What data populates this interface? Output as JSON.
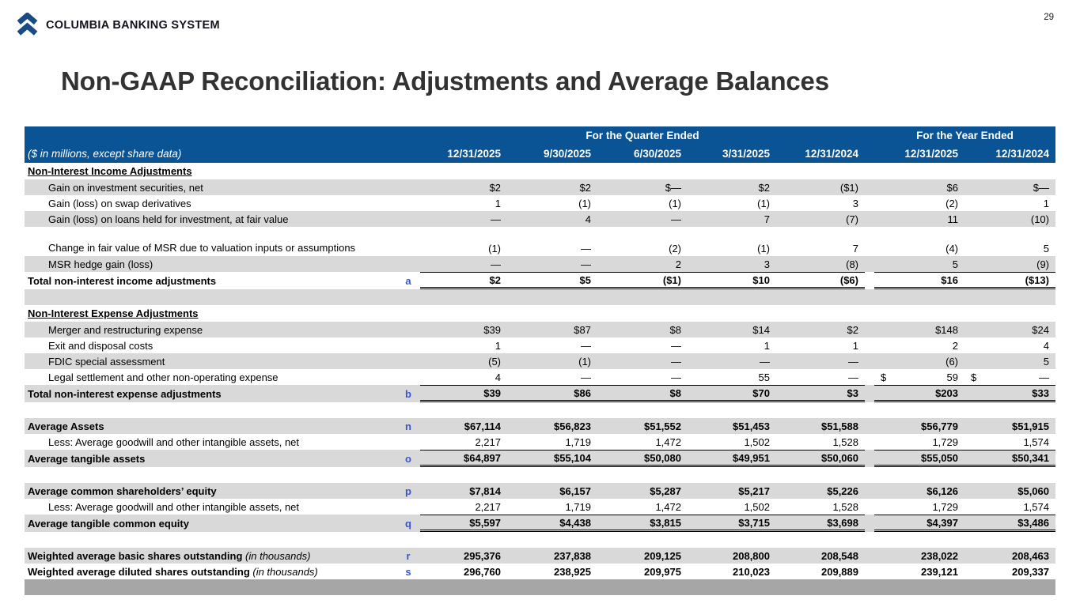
{
  "page": {
    "number": "29"
  },
  "brand": {
    "name": "COLUMBIA BANKING SYSTEM"
  },
  "title": "Non-GAAP Reconciliation: Adjustments and Average Balances",
  "colors": {
    "header_bg": "#0a5394",
    "row_shade": "#d9d9d9",
    "ref_letter": "#3a55cb",
    "bottom_bar": "#a6a6a6",
    "brand_navy": "#1a4b82"
  },
  "table": {
    "unit_note": "($ in millions, except share data)",
    "col_groups": [
      {
        "label": "For the Quarter Ended",
        "span": 5
      },
      {
        "label": "For the Year Ended",
        "span": 2
      }
    ],
    "columns": [
      "12/31/2025",
      "9/30/2025",
      "6/30/2025",
      "3/31/2025",
      "12/31/2024",
      "12/31/2025",
      "12/31/2024"
    ],
    "rows": [
      {
        "kind": "section",
        "label": "Non-Interest Income Adjustments"
      },
      {
        "kind": "data",
        "shade": true,
        "indent": true,
        "label": "Gain on investment securities, net",
        "values": [
          "$2",
          "$2",
          "$—",
          "$2",
          "($1)",
          "$6",
          "$—"
        ]
      },
      {
        "kind": "data",
        "shade": false,
        "indent": true,
        "label": "Gain (loss) on swap derivatives",
        "values": [
          "1",
          "(1)",
          "(1)",
          "(1)",
          "3",
          "(2)",
          "1"
        ]
      },
      {
        "kind": "data",
        "shade": true,
        "indent": true,
        "label": "Gain (loss) on loans held for investment, at fair value",
        "values": [
          "—",
          "4",
          "—",
          "7",
          "(7)",
          "11",
          "(10)"
        ]
      },
      {
        "kind": "data",
        "shade": false,
        "indent": true,
        "tall": true,
        "label": "Change in fair value of MSR due to valuation inputs or assumptions",
        "values": [
          "(1)",
          "—",
          "(2)",
          "(1)",
          "7",
          "(4)",
          "5"
        ]
      },
      {
        "kind": "data",
        "shade": true,
        "indent": true,
        "label": "MSR hedge gain (loss)",
        "values": [
          "—",
          "—",
          "2",
          "3",
          "(8)",
          "5",
          "(9)"
        ]
      },
      {
        "kind": "total",
        "shade": false,
        "label": "Total non-interest income adjustments",
        "letter": "a",
        "values": [
          "$2",
          "$5",
          "($1)",
          "$10",
          "($6)",
          "$16",
          "($13)"
        ]
      },
      {
        "kind": "spacer",
        "shade": true
      },
      {
        "kind": "section",
        "label": "Non-Interest Expense Adjustments"
      },
      {
        "kind": "data",
        "shade": true,
        "indent": true,
        "label": "Merger and restructuring expense",
        "values": [
          "$39",
          "$87",
          "$8",
          "$14",
          "$2",
          "$148",
          "$24"
        ]
      },
      {
        "kind": "data",
        "shade": false,
        "indent": true,
        "label": "Exit and disposal costs",
        "values": [
          "1",
          "—",
          "—",
          "1",
          "1",
          "2",
          "4"
        ]
      },
      {
        "kind": "data",
        "shade": true,
        "indent": true,
        "label": "FDIC special assessment",
        "values": [
          "(5)",
          "(1)",
          "—",
          "—",
          "—",
          "(6)",
          "5"
        ]
      },
      {
        "kind": "data",
        "shade": false,
        "indent": true,
        "label": "Legal settlement and other non-operating expense",
        "values": [
          "4",
          "—",
          "—",
          "55",
          "—",
          {
            "d": "$",
            "v": "59"
          },
          {
            "d": "$",
            "v": "—"
          }
        ]
      },
      {
        "kind": "total",
        "shade": true,
        "label": "Total non-interest expense adjustments",
        "letter": "b",
        "values": [
          "$39",
          "$86",
          "$8",
          "$70",
          "$3",
          "$203",
          "$33"
        ]
      },
      {
        "kind": "spacer",
        "shade": false
      },
      {
        "kind": "data",
        "shade": true,
        "b": true,
        "label": "Average Assets",
        "letter": "n",
        "values": [
          "$67,114",
          "$56,823",
          "$51,552",
          "$51,453",
          "$51,588",
          "$56,779",
          "$51,915"
        ]
      },
      {
        "kind": "data",
        "shade": false,
        "indent": true,
        "label": "Less: Average goodwill and other intangible assets, net",
        "values": [
          "2,217",
          "1,719",
          "1,472",
          "1,502",
          "1,528",
          "1,729",
          "1,574"
        ]
      },
      {
        "kind": "total",
        "shade": true,
        "label": "Average tangible assets",
        "letter": "o",
        "values": [
          "$64,897",
          "$55,104",
          "$50,080",
          "$49,951",
          "$50,060",
          "$55,050",
          "$50,341"
        ]
      },
      {
        "kind": "spacer",
        "shade": false
      },
      {
        "kind": "data",
        "shade": true,
        "b": true,
        "label": "Average common shareholders’ equity",
        "letter": "p",
        "values": [
          "$7,814",
          "$6,157",
          "$5,287",
          "$5,217",
          "$5,226",
          "$6,126",
          "$5,060"
        ]
      },
      {
        "kind": "data",
        "shade": false,
        "indent": true,
        "label": "Less: Average goodwill and other intangible assets, net",
        "values": [
          "2,217",
          "1,719",
          "1,472",
          "1,502",
          "1,528",
          "1,729",
          "1,574"
        ]
      },
      {
        "kind": "total",
        "shade": true,
        "label": "Average tangible common equity",
        "letter": "q",
        "values": [
          "$5,597",
          "$4,438",
          "$3,815",
          "$3,715",
          "$3,698",
          "$4,397",
          "$3,486"
        ]
      },
      {
        "kind": "spacer",
        "shade": false
      },
      {
        "kind": "data",
        "shade": true,
        "b": true,
        "label": "Weighted average basic shares outstanding",
        "suffix": "(in thousands)",
        "letter": "r",
        "values": [
          "295,376",
          "237,838",
          "209,125",
          "208,800",
          "208,548",
          "238,022",
          "208,463"
        ]
      },
      {
        "kind": "data",
        "shade": false,
        "b": true,
        "label": "Weighted average diluted shares outstanding",
        "suffix": "(in thousands)",
        "letter": "s",
        "values": [
          "296,760",
          "238,925",
          "209,975",
          "210,023",
          "209,889",
          "239,121",
          "209,337"
        ]
      },
      {
        "kind": "bar"
      }
    ]
  }
}
